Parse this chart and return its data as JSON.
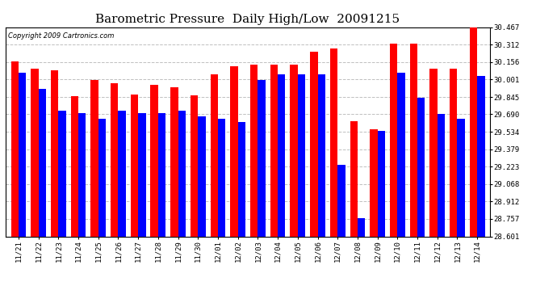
{
  "title": "Barometric Pressure  Daily High/Low  20091215",
  "copyright": "Copyright 2009 Cartronics.com",
  "dates": [
    "11/21",
    "11/22",
    "11/23",
    "11/24",
    "11/25",
    "11/26",
    "11/27",
    "11/28",
    "11/29",
    "11/30",
    "12/01",
    "12/02",
    "12/03",
    "12/04",
    "12/05",
    "12/06",
    "12/07",
    "12/08",
    "12/09",
    "12/10",
    "12/11",
    "12/12",
    "12/13",
    "12/14"
  ],
  "highs": [
    30.16,
    30.1,
    30.08,
    29.85,
    30.0,
    29.97,
    29.87,
    29.95,
    29.93,
    29.86,
    30.05,
    30.12,
    30.13,
    30.13,
    30.13,
    30.25,
    30.28,
    29.63,
    29.56,
    30.32,
    30.32,
    30.1,
    30.1,
    30.47
  ],
  "lows": [
    30.06,
    29.92,
    29.72,
    29.7,
    29.65,
    29.72,
    29.7,
    29.7,
    29.72,
    29.67,
    29.65,
    29.62,
    30.0,
    30.05,
    30.05,
    30.05,
    29.24,
    28.76,
    29.54,
    30.06,
    29.84,
    29.69,
    29.65,
    30.03
  ],
  "high_color": "#ff0000",
  "low_color": "#0000ff",
  "bg_color": "#ffffff",
  "grid_color": "#c0c0c0",
  "yticks": [
    28.601,
    28.757,
    28.912,
    29.068,
    29.223,
    29.379,
    29.534,
    29.69,
    29.845,
    30.001,
    30.156,
    30.312,
    30.467
  ],
  "ymin": 28.601,
  "ymax": 30.467,
  "bar_width": 0.38,
  "title_fontsize": 11,
  "tick_fontsize": 6.5,
  "copyright_fontsize": 6
}
